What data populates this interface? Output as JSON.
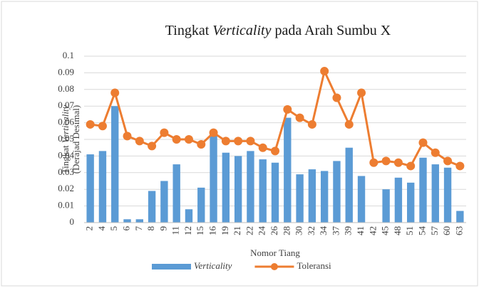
{
  "chart_data": {
    "type": "bar-line",
    "title": [
      "Tingkat ",
      "Verticality",
      " pada Arah Sumbu X"
    ],
    "y_label": [
      [
        "Tingkat ",
        "Verticality"
      ],
      "(Derajad Desimal)"
    ],
    "x_label": "Nomor Tiang",
    "categories": [
      "2",
      "4",
      "5",
      "6",
      "7",
      "8",
      "9",
      "11",
      "12",
      "15",
      "16",
      "19",
      "21",
      "22",
      "24",
      "26",
      "28",
      "30",
      "32",
      "34",
      "37",
      "39",
      "41",
      "42",
      "45",
      "48",
      "51",
      "54",
      "57",
      "60",
      "63"
    ],
    "series": [
      {
        "name": "Verticality",
        "type": "bar",
        "color": "#5b9bd5",
        "values": [
          0.041,
          0.043,
          0.07,
          0.002,
          0.002,
          0.019,
          0.025,
          0.035,
          0.008,
          0.021,
          0.053,
          0.042,
          0.04,
          0.043,
          0.038,
          0.036,
          0.063,
          0.029,
          0.032,
          0.031,
          0.037,
          0.045,
          0.028,
          0,
          0.02,
          0.027,
          0.024,
          0.039,
          0.035,
          0.033,
          0.007
        ]
      },
      {
        "name": "Toleransi",
        "type": "line",
        "color": "#ed7d31",
        "values": [
          0.059,
          0.058,
          0.078,
          0.052,
          0.049,
          0.046,
          0.054,
          0.05,
          0.05,
          0.047,
          0.054,
          0.049,
          0.049,
          0.049,
          0.045,
          0.043,
          0.068,
          0.063,
          0.059,
          0.091,
          0.075,
          0.059,
          0.078,
          0.036,
          0.037,
          0.036,
          0.034,
          0.048,
          0.042,
          0.037,
          0.034
        ]
      }
    ],
    "ylim": [
      0,
      0.1
    ],
    "yticks": [
      0,
      0.01,
      0.02,
      0.03,
      0.04,
      0.05,
      0.06,
      0.07,
      0.08,
      0.09,
      0.1
    ],
    "grid": true,
    "legend": "bottom"
  }
}
